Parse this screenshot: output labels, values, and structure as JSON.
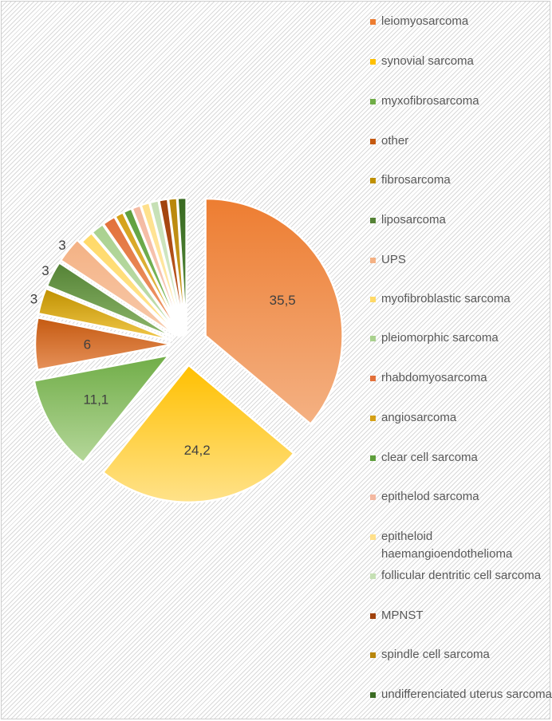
{
  "chart_data": {
    "type": "pie",
    "variant": "exploded",
    "background_pattern": "diagonal-hatch",
    "legend_position": "right",
    "slices": [
      {
        "label": "leiomyosarcoma",
        "value": 35.5,
        "data_label": "35,5",
        "color": "#ED7D31",
        "color_light": "#F4B183"
      },
      {
        "label": "synovial sarcoma",
        "value": 24.2,
        "data_label": "24,2",
        "color": "#FFC000",
        "color_light": "#FFE28A"
      },
      {
        "label": "myxofibrosarcoma",
        "value": 11.1,
        "data_label": "11,1",
        "color": "#70AD47",
        "color_light": "#B5D79A"
      },
      {
        "label": "other",
        "value": 6,
        "data_label": "6",
        "color": "#C55A11",
        "color_light": "#E6915A"
      },
      {
        "label": "fibrosarcoma",
        "value": 3,
        "data_label": "3",
        "color": "#BF9000",
        "color_light": "#F2C94C"
      },
      {
        "label": "liposarcoma",
        "value": 3,
        "data_label": "3",
        "color": "#548235",
        "color_light": "#8FB86D"
      },
      {
        "label": "UPS",
        "value": 3,
        "data_label": "3",
        "color": "#F4B183",
        "color_light": "#F8CBAD"
      },
      {
        "label": "myofibroblastic sarcoma",
        "value": 1.5,
        "data_label": "",
        "color": "#FFD966",
        "color_light": "#FFE699"
      },
      {
        "label": "pleiomorphic sarcoma",
        "value": 1.5,
        "data_label": "",
        "color": "#A9D18E",
        "color_light": "#C5E0B4"
      },
      {
        "label": "rhabdomyosarcoma",
        "value": 1.5,
        "data_label": "",
        "color": "#E2703A",
        "color_light": "#F0A070"
      },
      {
        "label": "angiosarcoma",
        "value": 1,
        "data_label": "",
        "color": "#D4A017",
        "color_light": "#E8C25A"
      },
      {
        "label": "clear cell sarcoma",
        "value": 1,
        "data_label": "",
        "color": "#5E9E3C",
        "color_light": "#8CC46C"
      },
      {
        "label": "epithelod sarcoma",
        "value": 1,
        "data_label": "",
        "color": "#F4B8A0",
        "color_light": "#F8D0C0"
      },
      {
        "label": "epitheloid haemangioendothelioma",
        "value": 1,
        "data_label": "",
        "color": "#FFE08A",
        "color_light": "#FFEDB5"
      },
      {
        "label": "follicular dentritic cell sarcoma",
        "value": 1,
        "data_label": "",
        "color": "#C5E0B4",
        "color_light": "#DCEDD0"
      },
      {
        "label": "MPNST",
        "value": 1,
        "data_label": "",
        "color": "#A0420C",
        "color_light": "#C8622A"
      },
      {
        "label": "spindle cell sarcoma",
        "value": 1,
        "data_label": "",
        "color": "#B8860B",
        "color_light": "#D4A52A"
      },
      {
        "label": "undifferenciated uterus sarcoma",
        "value": 1,
        "data_label": "",
        "color": "#3A6B22",
        "color_light": "#5A8F3E"
      }
    ]
  }
}
